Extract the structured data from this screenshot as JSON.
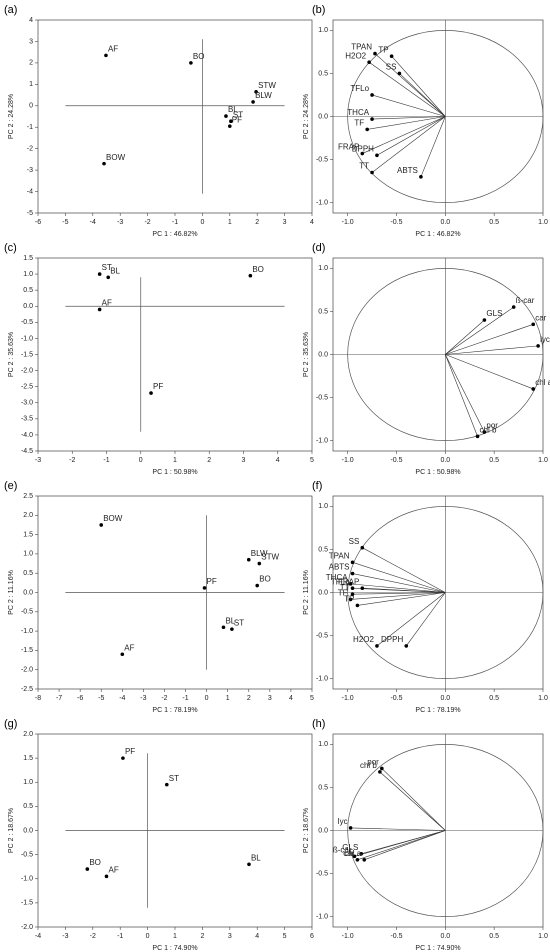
{
  "chart_data": [
    {
      "type": "scatter",
      "label": "(a)",
      "xlabel": "PC 1 : 46.82%",
      "ylabel": "PC 2 : 24.28%",
      "xlim": [
        -6,
        4
      ],
      "ylim": [
        -5,
        4
      ],
      "xticks": [
        -6,
        -5,
        -4,
        -3,
        -2,
        -1,
        0,
        1,
        2,
        3,
        4
      ],
      "yticks": [
        4,
        3,
        2,
        1,
        0,
        -1,
        -2,
        -3,
        -4,
        -5
      ],
      "names": [
        "AF",
        "BO",
        "STW",
        "BLW",
        "BL",
        "ST",
        "PF",
        "BOW"
      ],
      "x": [
        -3.52,
        -0.42,
        1.96,
        1.85,
        0.86,
        1.04,
        1.0,
        -3.59
      ],
      "y": [
        2.35,
        2.0,
        0.65,
        0.18,
        -0.48,
        -0.72,
        -0.95,
        -2.7
      ]
    },
    {
      "type": "loading",
      "label": "(b)",
      "xlabel": "PC 1 : 46.82%",
      "ylabel": "PC 2 : 24.28%",
      "xlim": [
        -1.15,
        1.0
      ],
      "ylim": [
        -1.12,
        1.12
      ],
      "xticks": [
        {
          "value": -1,
          "label": "-1.0"
        },
        -0.5,
        {
          "value": 0,
          "label": "0.0"
        },
        0.5,
        {
          "value": 1,
          "label": "1.0"
        }
      ],
      "yticks": [
        {
          "value": 1,
          "label": "1.0"
        },
        0.5,
        {
          "value": 0,
          "label": "0.0"
        },
        -0.5,
        {
          "value": -1,
          "label": "-1.0"
        }
      ],
      "names": [
        "TPAN",
        "TP",
        "H2O2",
        "SS",
        "TFLo",
        "THCA",
        "TF",
        "FRAP",
        "DPPH",
        "TT",
        "ABTS"
      ],
      "x": [
        -0.72,
        -0.55,
        -0.78,
        -0.47,
        -0.75,
        -0.75,
        -0.8,
        -0.85,
        -0.7,
        -0.75,
        -0.25
      ],
      "y": [
        0.73,
        0.7,
        0.63,
        0.5,
        0.25,
        -0.03,
        -0.15,
        -0.43,
        -0.45,
        -0.65,
        -0.7
      ]
    },
    {
      "type": "scatter",
      "label": "(c)",
      "xlabel": "PC 1 : 50.98%",
      "ylabel": "PC 2 : 35.63%",
      "xlim": [
        -3,
        5
      ],
      "ylim": [
        -4.5,
        1.5
      ],
      "xticks": [
        -3,
        -2,
        -1,
        0,
        1,
        2,
        3,
        4,
        5
      ],
      "yticks": [
        1.5,
        {
          "value": 1,
          "label": "1.0"
        },
        0.5,
        {
          "value": 0,
          "label": "0.0"
        },
        -0.5,
        {
          "value": -1,
          "label": "-1.0"
        },
        -1.5,
        {
          "value": -2,
          "label": "-2.0"
        },
        -2.5,
        {
          "value": -3,
          "label": "-3.0"
        },
        -3.5,
        {
          "value": -4,
          "label": "-4.0"
        },
        -4.5
      ],
      "names": [
        "ST",
        "BL",
        "AF",
        "BO",
        "PF"
      ],
      "x": [
        -1.2,
        -0.95,
        -1.2,
        3.2,
        0.3
      ],
      "y": [
        1.0,
        0.9,
        -0.1,
        0.95,
        -2.7
      ]
    },
    {
      "type": "loading",
      "label": "(d)",
      "xlabel": "PC 1 : 50.98%",
      "ylabel": "PC 2 : 35.63%",
      "xlim": [
        -1.15,
        1.0
      ],
      "ylim": [
        -1.12,
        1.12
      ],
      "xticks": [
        {
          "value": -1,
          "label": "-1.0"
        },
        -0.5,
        {
          "value": 0,
          "label": "0.0"
        },
        0.5,
        {
          "value": 1,
          "label": "1.0"
        }
      ],
      "yticks": [
        {
          "value": 1,
          "label": "1.0"
        },
        0.5,
        {
          "value": 0,
          "label": "0.0"
        },
        -0.5,
        {
          "value": -1,
          "label": "-1.0"
        }
      ],
      "names": [
        "GLS",
        "ß-car",
        "car",
        "lyc",
        "chl a",
        "por",
        "chl b"
      ],
      "x": [
        0.4,
        0.7,
        0.9,
        0.95,
        0.9,
        0.4,
        0.33
      ],
      "y": [
        0.4,
        0.55,
        0.35,
        0.1,
        -0.4,
        -0.9,
        -0.95
      ]
    },
    {
      "type": "scatter",
      "label": "(e)",
      "xlabel": "PC 1 : 78.19%",
      "ylabel": "PC 2 : 11.16%",
      "xlim": [
        -8,
        5
      ],
      "ylim": [
        -2.5,
        2.5
      ],
      "xticks": [
        -8,
        -7,
        -6,
        -5,
        -4,
        -3,
        -2,
        -1,
        0,
        1,
        2,
        3,
        4,
        5
      ],
      "yticks": [
        2.5,
        {
          "value": 2,
          "label": "2.0"
        },
        1.5,
        {
          "value": 1,
          "label": "1.0"
        },
        0.5,
        {
          "value": 0,
          "label": "0.0"
        },
        -0.5,
        {
          "value": -1,
          "label": "-1.0"
        },
        -1.5,
        {
          "value": -2,
          "label": "-2.0"
        },
        -2.5
      ],
      "names": [
        "BOW",
        "BLW",
        "STW",
        "PF",
        "BO",
        "BL",
        "ST",
        "AF"
      ],
      "x": [
        -5.0,
        2.0,
        2.5,
        -0.1,
        2.4,
        0.8,
        1.2,
        -4.0
      ],
      "y": [
        1.75,
        0.85,
        0.75,
        0.12,
        0.18,
        -0.9,
        -0.95,
        -1.6
      ]
    },
    {
      "type": "loading",
      "label": "(f)",
      "xlabel": "PC 1 : 78.19%",
      "ylabel": "PC 2 : 11.16%",
      "xlim": [
        -1.15,
        1.0
      ],
      "ylim": [
        -1.12,
        1.12
      ],
      "xticks": [
        {
          "value": -1,
          "label": "-1.0"
        },
        -0.5,
        {
          "value": 0,
          "label": "0.0"
        },
        0.5,
        {
          "value": 1,
          "label": "1.0"
        }
      ],
      "yticks": [
        {
          "value": 1,
          "label": "1.0"
        },
        0.5,
        {
          "value": 0,
          "label": "0.0"
        },
        -0.5,
        {
          "value": -1,
          "label": "-1.0"
        }
      ],
      "names": [
        "SS",
        "TPAN",
        "ABTS",
        "THCA",
        "TFLo",
        "FRAP",
        "TT",
        "TF",
        "TP",
        "H2O2",
        "DPPH"
      ],
      "x": [
        -0.85,
        -0.95,
        -0.95,
        -0.97,
        -0.95,
        -0.85,
        -0.95,
        -0.97,
        -0.9,
        -0.7,
        -0.4
      ],
      "y": [
        0.52,
        0.35,
        0.22,
        0.1,
        0.05,
        0.05,
        -0.02,
        -0.08,
        -0.15,
        -0.62,
        -0.62
      ]
    },
    {
      "type": "scatter",
      "label": "(g)",
      "xlabel": "PC 1 : 74.90%",
      "ylabel": "PC 2 : 18.67%",
      "xlim": [
        -4,
        6
      ],
      "ylim": [
        -2,
        2
      ],
      "xticks": [
        -4,
        -3,
        -2,
        -1,
        0,
        1,
        2,
        3,
        4,
        5,
        6
      ],
      "yticks": [
        {
          "value": 2,
          "label": "2.0"
        },
        1.5,
        {
          "value": 1,
          "label": "1.0"
        },
        0.5,
        {
          "value": 0,
          "label": "0.0"
        },
        -0.5,
        {
          "value": -1,
          "label": "-1.0"
        },
        -1.5,
        {
          "value": -2,
          "label": "-2.0"
        }
      ],
      "names": [
        "PF",
        "ST",
        "BO",
        "AF",
        "BL"
      ],
      "x": [
        -0.9,
        0.7,
        -2.2,
        -1.5,
        3.7
      ],
      "y": [
        1.5,
        0.95,
        -0.8,
        -0.95,
        -0.7
      ]
    },
    {
      "type": "loading",
      "label": "(h)",
      "xlabel": "PC 1 : 74.90%",
      "ylabel": "PC 2 : 18.67%",
      "xlim": [
        -1.15,
        1.0
      ],
      "ylim": [
        -1.12,
        1.12
      ],
      "xticks": [
        {
          "value": -1,
          "label": "-1.0"
        },
        -0.5,
        {
          "value": 0,
          "label": "0.0"
        },
        0.5,
        {
          "value": 1,
          "label": "1.0"
        }
      ],
      "yticks": [
        {
          "value": 1,
          "label": "1.0"
        },
        0.5,
        {
          "value": 0,
          "label": "0.0"
        },
        -0.5,
        {
          "value": -1,
          "label": "-1.0"
        }
      ],
      "names": [
        "por",
        "chl b",
        "lyc",
        "GLS",
        "ß-car",
        "car",
        "chl a"
      ],
      "x": [
        -0.65,
        -0.67,
        -0.97,
        -0.86,
        -0.93,
        -0.9,
        -0.83
      ],
      "y": [
        0.72,
        0.68,
        0.03,
        -0.27,
        -0.3,
        -0.34,
        -0.34
      ]
    }
  ]
}
